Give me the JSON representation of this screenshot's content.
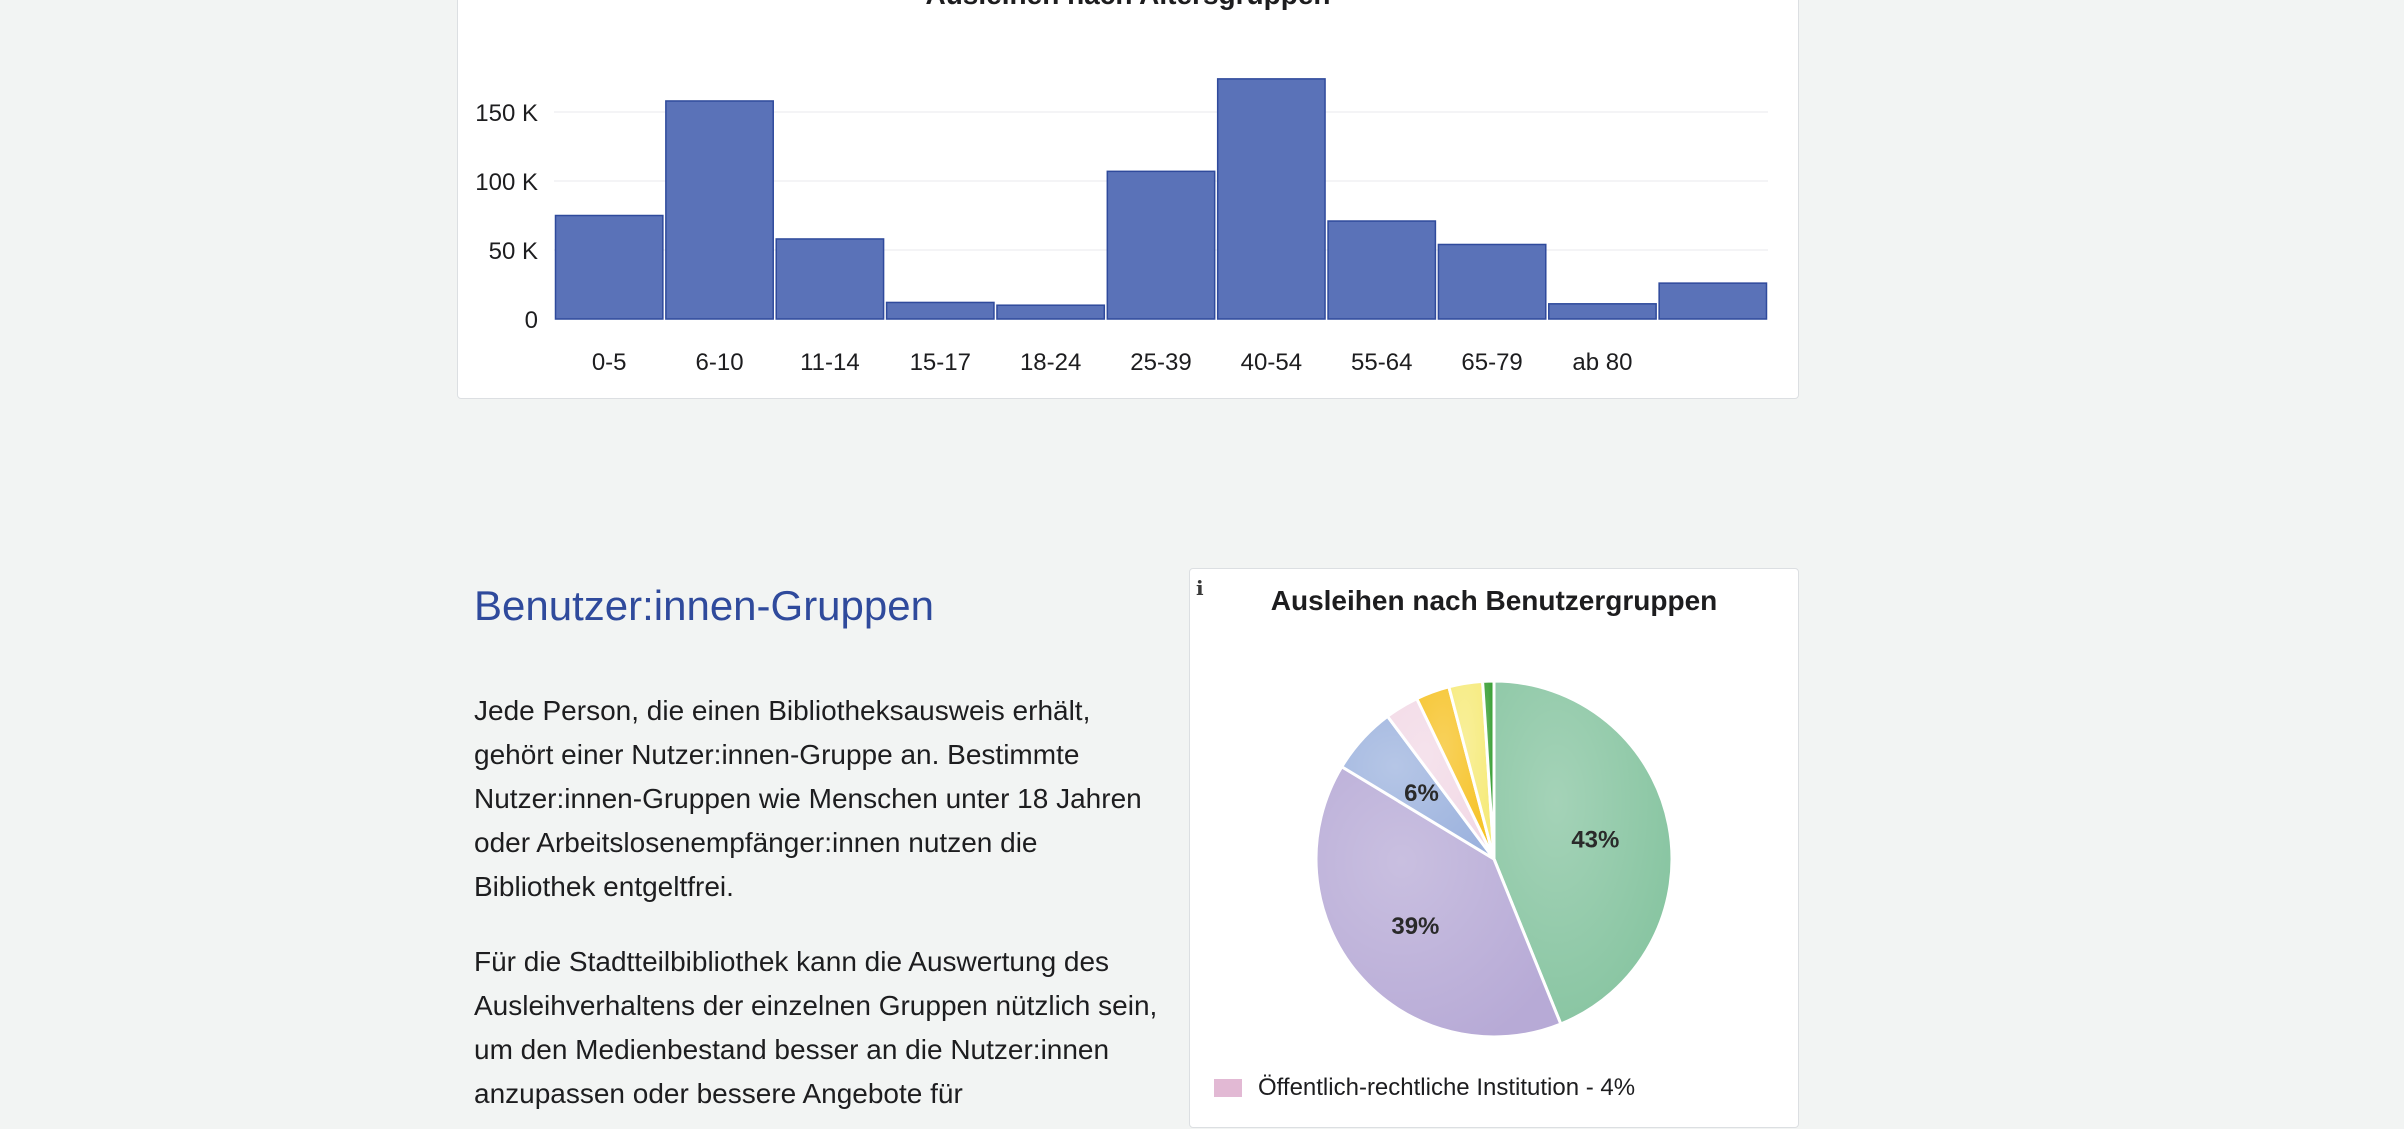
{
  "bar_chart": {
    "title": "Ausleihen nach Altersgruppen"
  },
  "section": {
    "heading": "Benutzer:innen-Gruppen",
    "paragraph_1": "Jede Person, die einen Bibliotheksausweis erhält, gehört einer Nutzer:innen-Gruppe an. Bestimmte Nutzer:innen-Gruppen wie Menschen unter 18 Jahren oder Arbeitslosenempfänger:innen nutzen die Bibliothek entgeltfrei.",
    "paragraph_2": "Für die Stadtteilbibliothek kann die Auswertung des Ausleihverhaltens der einzelnen Gruppen nützlich sein, um den Medienbestand besser an die Nutzer:innen anzupassen oder bessere Angebote für"
  },
  "pie_chart": {
    "title": "Ausleihen nach Benutzergruppen",
    "info_icon": "info-icon",
    "legend_visible_item": "Öffentlich-rechtliche Institution - 4%",
    "legend_color": "#e2b9d4"
  },
  "colors": {
    "bar_fill": "#5a72b8",
    "bar_stroke": "#2f4a9c",
    "heading": "#2f4a9c"
  },
  "chart_data": [
    {
      "type": "bar",
      "title": "Ausleihen nach Altersgruppen",
      "categories": [
        "0-5",
        "6-10",
        "11-14",
        "15-17",
        "18-24",
        "25-39",
        "40-54",
        "55-64",
        "65-79",
        "ab 80",
        ""
      ],
      "values": [
        75000,
        158000,
        58000,
        12000,
        10000,
        107000,
        174000,
        71000,
        54000,
        11000,
        26000
      ],
      "y_ticks": [
        0,
        50000,
        100000,
        150000
      ],
      "y_tick_labels": [
        "0",
        "50 K",
        "100 K",
        "150 K"
      ],
      "ylim": [
        0,
        180000
      ],
      "grid": true,
      "color": "#5a72b8"
    },
    {
      "type": "pie",
      "title": "Ausleihen nach Benutzergruppen",
      "slices": [
        {
          "value": 43,
          "label": "43%",
          "color": "#86c4a0"
        },
        {
          "value": 39,
          "label": "39%",
          "color": "#b7aad6"
        },
        {
          "value": 6,
          "label": "6%",
          "color": "#9db3de"
        },
        {
          "value": 3,
          "label": "",
          "color": "#f2d9e6"
        },
        {
          "value": 3,
          "label": "",
          "color": "#f6c224"
        },
        {
          "value": 3,
          "label": "",
          "color": "#f6ea78"
        },
        {
          "value": 1,
          "label": "",
          "color": "#2f9a2a"
        }
      ],
      "legend_visible": [
        "Öffentlich-rechtliche Institution - 4%"
      ]
    }
  ]
}
